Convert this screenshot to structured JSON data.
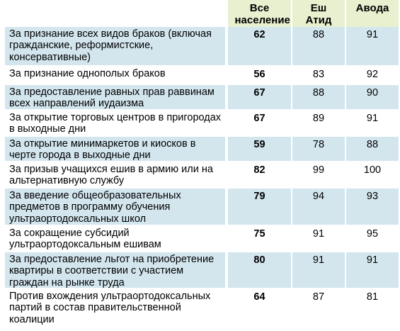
{
  "chart_data": {
    "type": "table",
    "columns": [
      "Все население",
      "Еш Атид",
      "Авода"
    ],
    "rows": [
      {
        "label": "За признание всех видов браков (включая гражданские, реформистские, консервативные)",
        "values": [
          62,
          88,
          91
        ]
      },
      {
        "label": "За признание однополых браков",
        "values": [
          56,
          83,
          92
        ]
      },
      {
        "label": "За предоставление равных прав раввинам всех направлений иудаизма",
        "values": [
          67,
          88,
          90
        ]
      },
      {
        "label": "За открытие торговых центров в пригородах в выходные дни",
        "values": [
          67,
          89,
          91
        ]
      },
      {
        "label": "За открытие минимаркетов и киосков в черте города в выходные дни",
        "values": [
          59,
          78,
          88
        ]
      },
      {
        "label": "За призыв учащихся ешив в армию или на альтернативную службу",
        "values": [
          82,
          99,
          100
        ]
      },
      {
        "label": "За введение общеобразовательных предметов в программу обучения ультраортодоксальных школ",
        "values": [
          79,
          94,
          93
        ]
      },
      {
        "label": "За сокращение субсидий ультраортодоксальным ешивам",
        "values": [
          75,
          91,
          95
        ]
      },
      {
        "label": "За предоставление льгот на приобретение квартиры в соответствии с участием граждан на рынке труда",
        "values": [
          80,
          91,
          91
        ]
      },
      {
        "label": "Против вхождения ультраортодоксальных партий в состав правительственной коалиции",
        "values": [
          64,
          87,
          81
        ]
      }
    ]
  },
  "header": {
    "col1": "Все\nнаселение",
    "col2": "Еш\nАтид",
    "col3": "Авода"
  }
}
